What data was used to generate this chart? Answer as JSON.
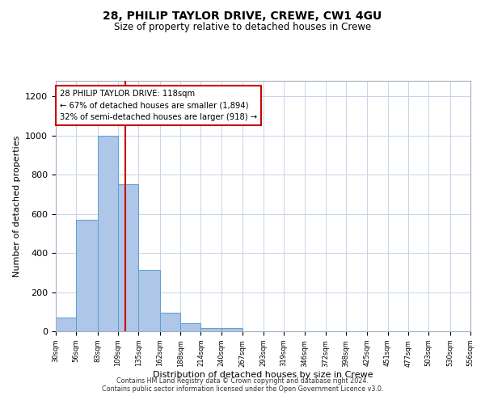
{
  "title": "28, PHILIP TAYLOR DRIVE, CREWE, CW1 4GU",
  "subtitle": "Size of property relative to detached houses in Crewe",
  "xlabel": "Distribution of detached houses by size in Crewe",
  "ylabel": "Number of detached properties",
  "bar_color": "#aec6e8",
  "bar_edge_color": "#5a9fd4",
  "background_color": "#ffffff",
  "grid_color": "#c8d4e8",
  "annotation_box_color": "#cc0000",
  "vline_color": "#cc0000",
  "vline_x": 118,
  "annotation_title": "28 PHILIP TAYLOR DRIVE: 118sqm",
  "annotation_line1": "← 67% of detached houses are smaller (1,894)",
  "annotation_line2": "32% of semi-detached houses are larger (918) →",
  "bin_edges": [
    30,
    56,
    83,
    109,
    135,
    162,
    188,
    214,
    240,
    267,
    293,
    319,
    346,
    372,
    398,
    425,
    451,
    477,
    503,
    530,
    556
  ],
  "bin_heights": [
    70,
    570,
    1000,
    750,
    315,
    95,
    40,
    18,
    15,
    0,
    0,
    0,
    0,
    0,
    0,
    0,
    0,
    0,
    0,
    0
  ],
  "tick_labels": [
    "30sqm",
    "56sqm",
    "83sqm",
    "109sqm",
    "135sqm",
    "162sqm",
    "188sqm",
    "214sqm",
    "240sqm",
    "267sqm",
    "293sqm",
    "319sqm",
    "346sqm",
    "372sqm",
    "398sqm",
    "425sqm",
    "451sqm",
    "477sqm",
    "503sqm",
    "530sqm",
    "556sqm"
  ],
  "ylim": [
    0,
    1280
  ],
  "yticks": [
    0,
    200,
    400,
    600,
    800,
    1000,
    1200
  ],
  "footnote1": "Contains HM Land Registry data © Crown copyright and database right 2024.",
  "footnote2": "Contains public sector information licensed under the Open Government Licence v3.0."
}
